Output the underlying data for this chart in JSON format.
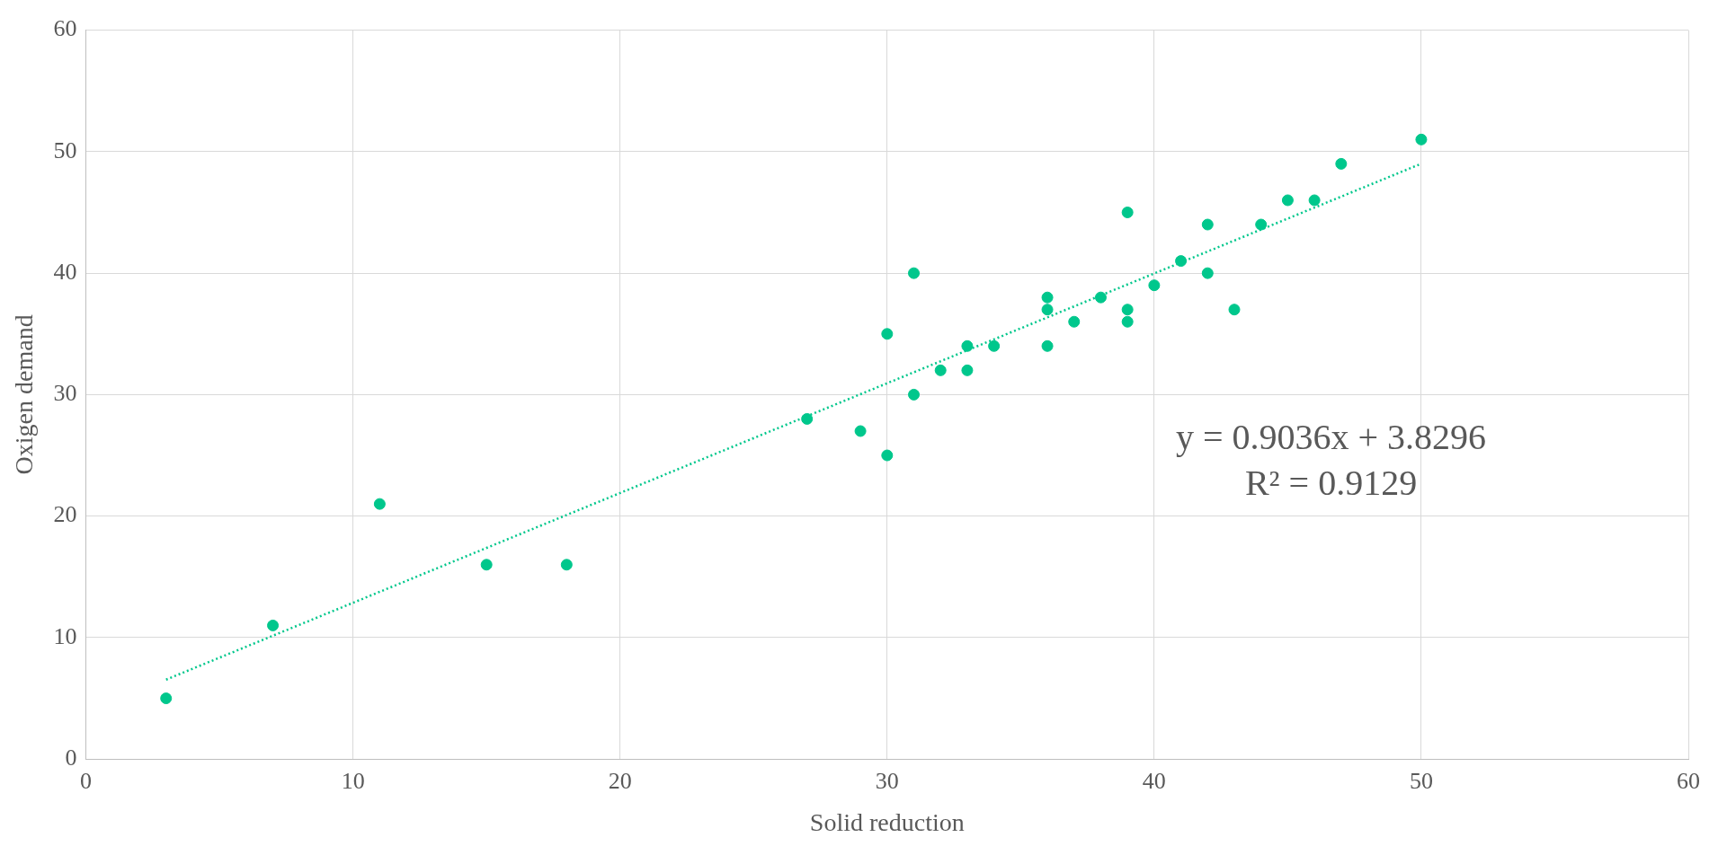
{
  "chart_data": {
    "type": "scatter",
    "xlabel": "Solid reduction",
    "ylabel": "Oxigen demand",
    "xlim": [
      0,
      60
    ],
    "xticks": [
      0,
      10,
      20,
      30,
      40,
      50,
      60
    ],
    "ylim": [
      0,
      60
    ],
    "yticks": [
      0,
      10,
      20,
      30,
      40,
      50,
      60
    ],
    "grid": true,
    "legend": false,
    "series": [
      {
        "color": "#00c78c",
        "marker": "circle",
        "x": [
          3,
          7,
          11,
          15,
          18,
          27,
          29,
          30,
          30,
          31,
          31,
          32,
          33,
          33,
          34,
          36,
          36,
          36,
          37,
          38,
          39,
          39,
          39,
          40,
          41,
          42,
          42,
          43,
          44,
          45,
          46,
          47,
          50
        ],
        "values": [
          5,
          11,
          21,
          16,
          16,
          28,
          27,
          35,
          25,
          40,
          30,
          32,
          34,
          32,
          34,
          38,
          37,
          34,
          36,
          38,
          45,
          37,
          36,
          39,
          41,
          44,
          40,
          37,
          44,
          46,
          46,
          49,
          51
        ]
      },
      {
        "type": "line",
        "color": "#00c78c",
        "line_style": "dotted",
        "marker": "none",
        "x": [
          3,
          50
        ],
        "values": [
          6.54,
          49.01
        ]
      }
    ],
    "annotations": [
      "y = 0.9036x + 3.8296",
      "R² = 0.9129"
    ]
  }
}
